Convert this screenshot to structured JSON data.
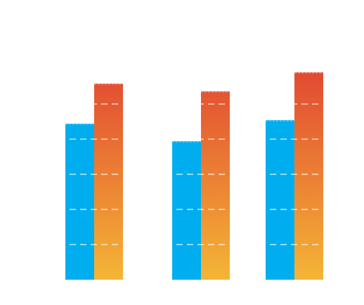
{
  "chart_data": {
    "type": "bar",
    "categories": [
      "",
      "",
      ""
    ],
    "series": [
      {
        "values": [
          222,
          197,
          227
        ]
      },
      {
        "values": [
          279,
          268,
          295
        ]
      }
    ],
    "ylim": [
      0,
      310
    ],
    "grid": true,
    "legend": "none",
    "colors": {
      "series_0": "#00aeef",
      "series_1_top": "#e24a32",
      "series_1_bottom": "#f4b536",
      "grid": "#ffffff",
      "background": "#ffffff"
    }
  }
}
